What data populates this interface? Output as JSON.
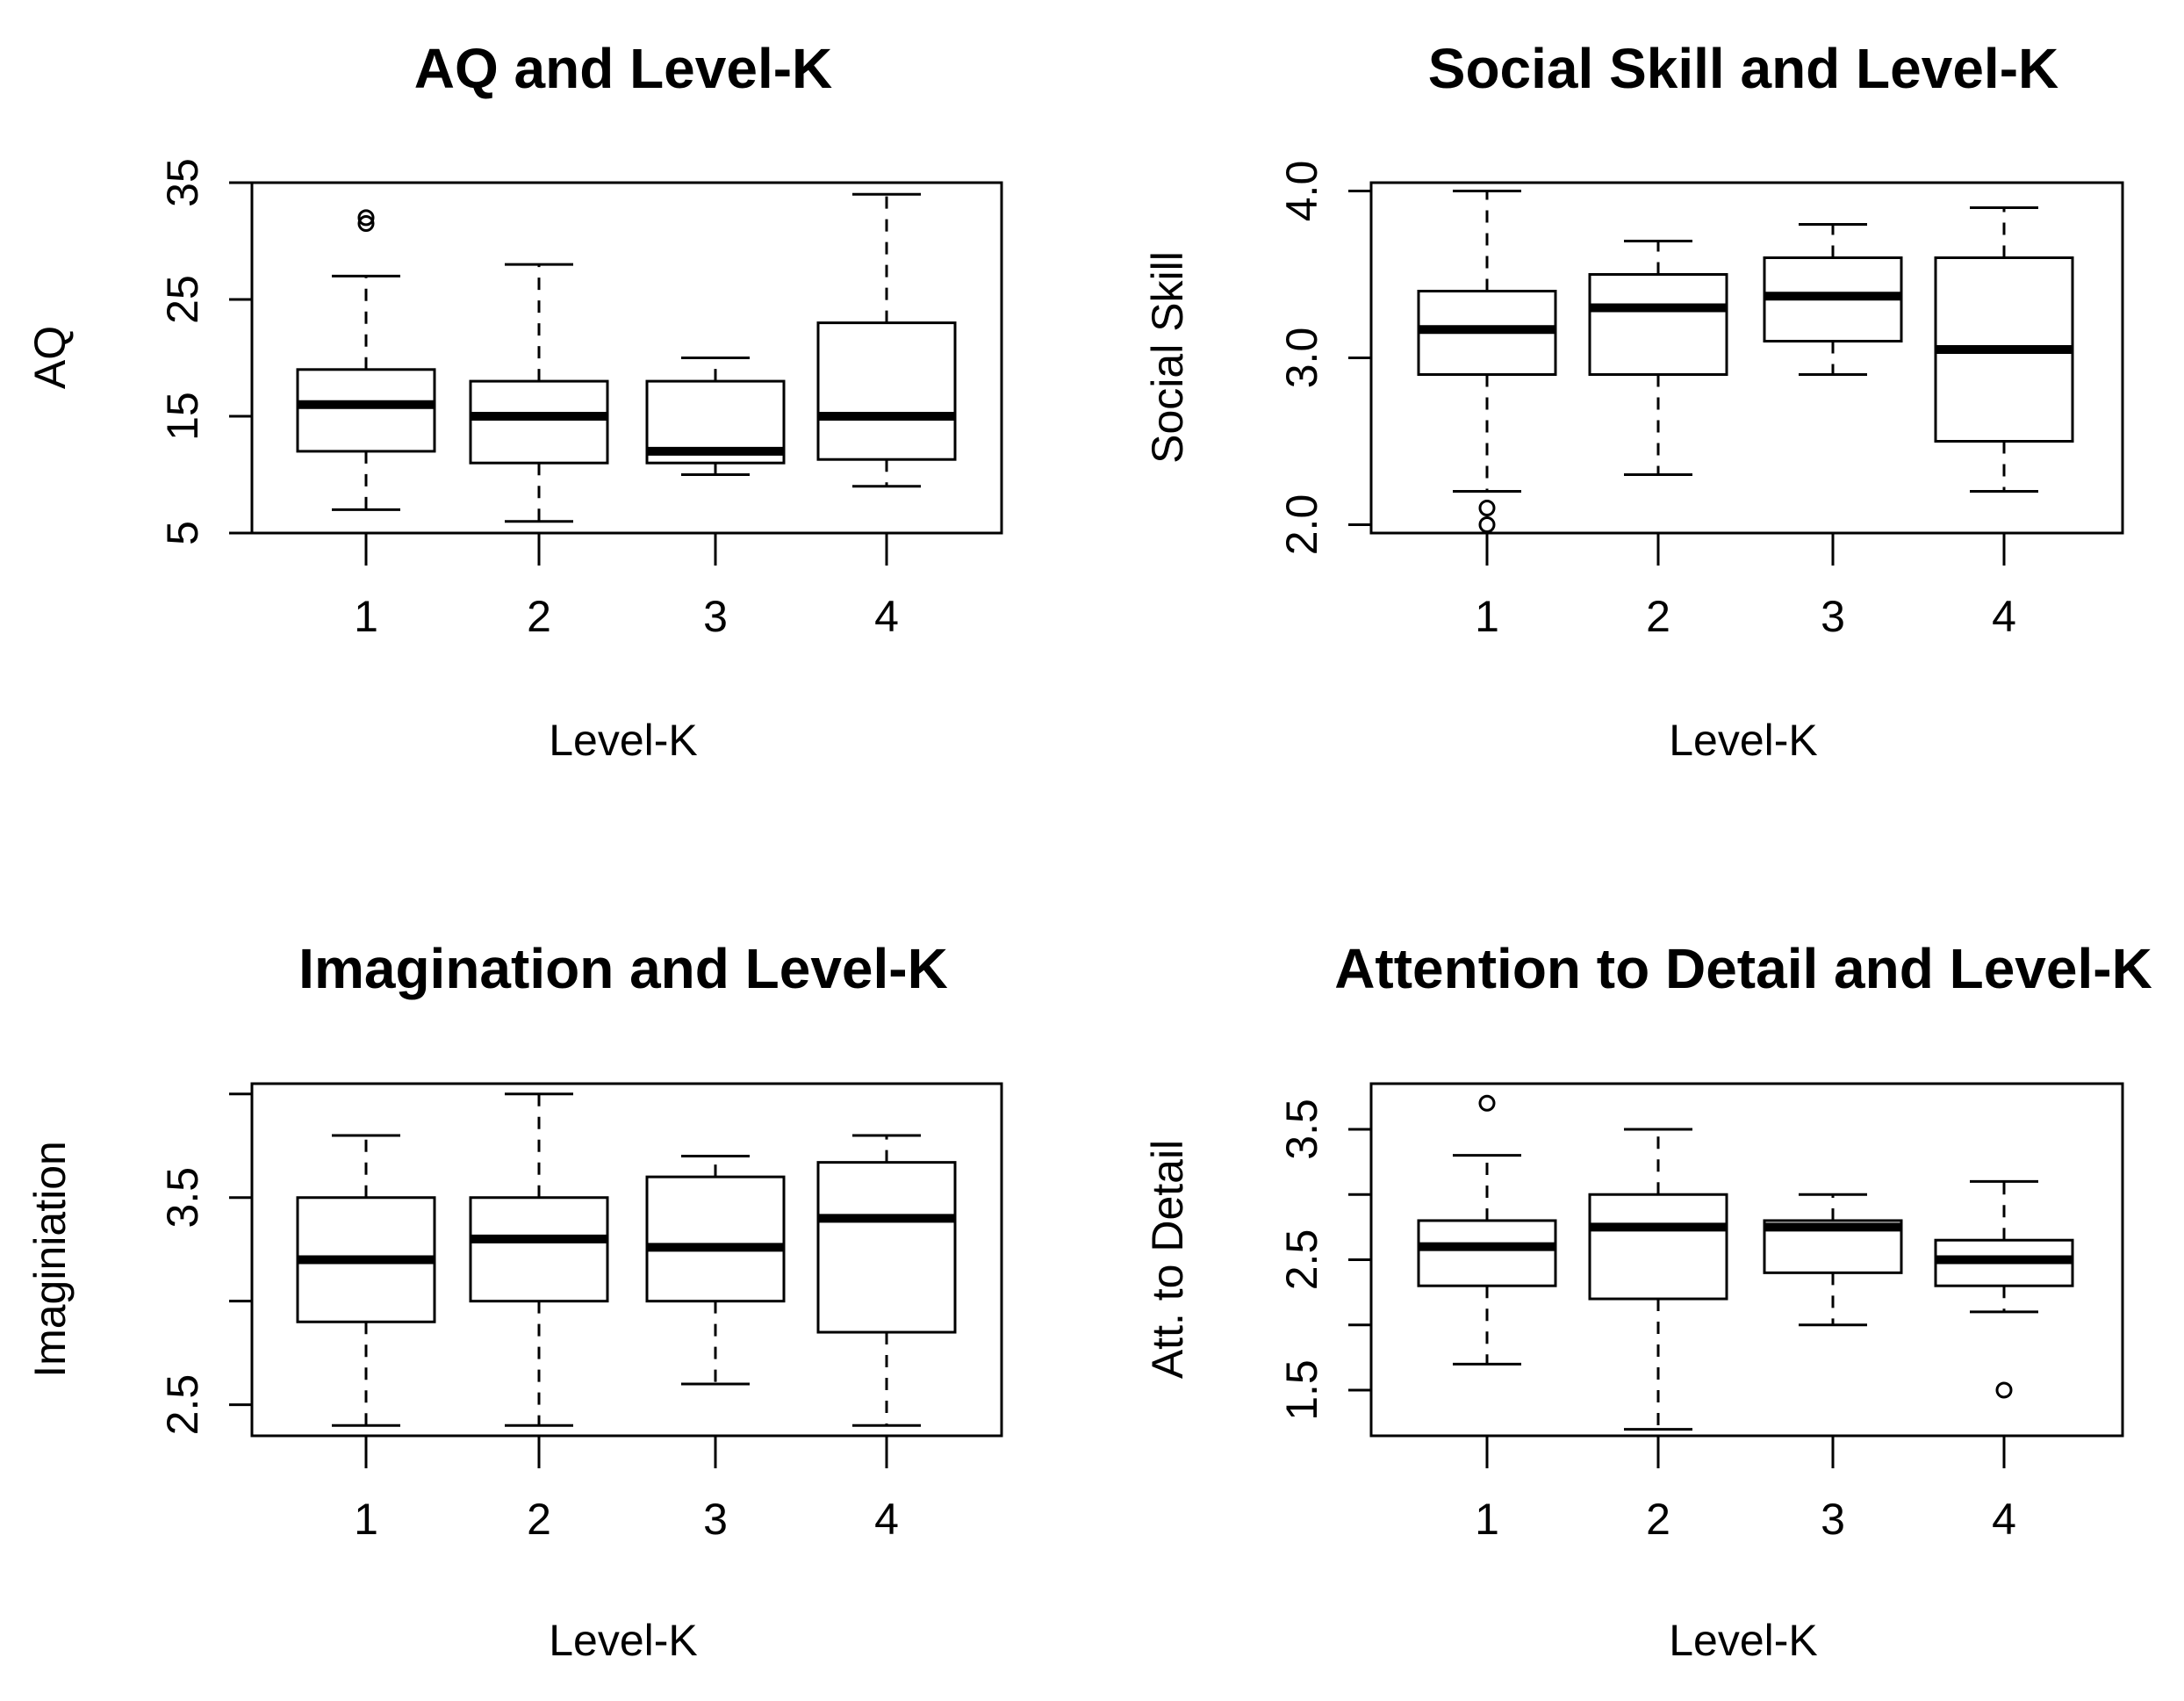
{
  "chart_data": [
    {
      "type": "boxplot",
      "title": "AQ and Level-K",
      "xlabel": "Level-K",
      "ylabel": "AQ",
      "categories": [
        "1",
        "2",
        "3",
        "4"
      ],
      "ylim": [
        5,
        35
      ],
      "yticks": [
        5,
        15,
        25,
        35
      ],
      "boxes": [
        {
          "category": "1",
          "whisker_low": 7,
          "q1": 12,
          "median": 16,
          "q3": 19,
          "whisker_high": 27,
          "outliers": [
            31.5,
            32
          ]
        },
        {
          "category": "2",
          "whisker_low": 6,
          "q1": 11,
          "median": 15,
          "q3": 18,
          "whisker_high": 28,
          "outliers": []
        },
        {
          "category": "3",
          "whisker_low": 10,
          "q1": 11,
          "median": 12,
          "q3": 18,
          "whisker_high": 20,
          "outliers": []
        },
        {
          "category": "4",
          "whisker_low": 9,
          "q1": 11.3,
          "median": 15,
          "q3": 23,
          "whisker_high": 34,
          "outliers": []
        }
      ]
    },
    {
      "type": "boxplot",
      "title": "Social Skill and Level-K",
      "xlabel": "Level-K",
      "ylabel": "Social Skill",
      "categories": [
        "1",
        "2",
        "3",
        "4"
      ],
      "ylim": [
        1.95,
        4.05
      ],
      "yticks": [
        2.0,
        3.0,
        4.0
      ],
      "ytick_labels": [
        "2.0",
        "3.0",
        "4.0"
      ],
      "boxes": [
        {
          "category": "1",
          "whisker_low": 2.2,
          "q1": 2.9,
          "median": 3.17,
          "q3": 3.4,
          "whisker_high": 4.0,
          "outliers": [
            2.0,
            2.1
          ]
        },
        {
          "category": "2",
          "whisker_low": 2.3,
          "q1": 2.9,
          "median": 3.3,
          "q3": 3.5,
          "whisker_high": 3.7,
          "outliers": []
        },
        {
          "category": "3",
          "whisker_low": 2.9,
          "q1": 3.1,
          "median": 3.37,
          "q3": 3.6,
          "whisker_high": 3.8,
          "outliers": []
        },
        {
          "category": "4",
          "whisker_low": 2.2,
          "q1": 2.5,
          "median": 3.05,
          "q3": 3.6,
          "whisker_high": 3.9,
          "outliers": []
        }
      ]
    },
    {
      "type": "boxplot",
      "title": "Imagination and Level-K",
      "xlabel": "Level-K",
      "ylabel": "Imaginiation",
      "categories": [
        "1",
        "2",
        "3",
        "4"
      ],
      "ylim": [
        2.35,
        4.05
      ],
      "yticks": [
        2.5,
        3.0,
        3.5,
        4.0
      ],
      "ytick_labels": [
        "2.5",
        "",
        "3.5",
        ""
      ],
      "boxes": [
        {
          "category": "1",
          "whisker_low": 2.4,
          "q1": 2.9,
          "median": 3.2,
          "q3": 3.5,
          "whisker_high": 3.8,
          "outliers": []
        },
        {
          "category": "2",
          "whisker_low": 2.4,
          "q1": 3.0,
          "median": 3.3,
          "q3": 3.5,
          "whisker_high": 4.0,
          "outliers": []
        },
        {
          "category": "3",
          "whisker_low": 2.6,
          "q1": 3.0,
          "median": 3.26,
          "q3": 3.6,
          "whisker_high": 3.7,
          "outliers": []
        },
        {
          "category": "4",
          "whisker_low": 2.4,
          "q1": 2.85,
          "median": 3.4,
          "q3": 3.67,
          "whisker_high": 3.8,
          "outliers": []
        }
      ]
    },
    {
      "type": "boxplot",
      "title": "Attention to Detail and Level-K",
      "xlabel": "Level-K",
      "ylabel": "Att. to Detail",
      "categories": [
        "1",
        "2",
        "3",
        "4"
      ],
      "ylim": [
        1.15,
        3.85
      ],
      "yticks": [
        1.5,
        2.0,
        2.5,
        3.0,
        3.5
      ],
      "ytick_labels": [
        "1.5",
        "",
        "2.5",
        "",
        "3.5"
      ],
      "boxes": [
        {
          "category": "1",
          "whisker_low": 1.7,
          "q1": 2.3,
          "median": 2.6,
          "q3": 2.8,
          "whisker_high": 3.3,
          "outliers": [
            3.7
          ]
        },
        {
          "category": "2",
          "whisker_low": 1.2,
          "q1": 2.2,
          "median": 2.75,
          "q3": 3.0,
          "whisker_high": 3.5,
          "outliers": []
        },
        {
          "category": "3",
          "whisker_low": 2.0,
          "q1": 2.4,
          "median": 2.75,
          "q3": 2.8,
          "whisker_high": 3.0,
          "outliers": []
        },
        {
          "category": "4",
          "whisker_low": 2.1,
          "q1": 2.3,
          "median": 2.5,
          "q3": 2.65,
          "whisker_high": 3.1,
          "outliers": [
            1.5
          ]
        }
      ]
    }
  ]
}
